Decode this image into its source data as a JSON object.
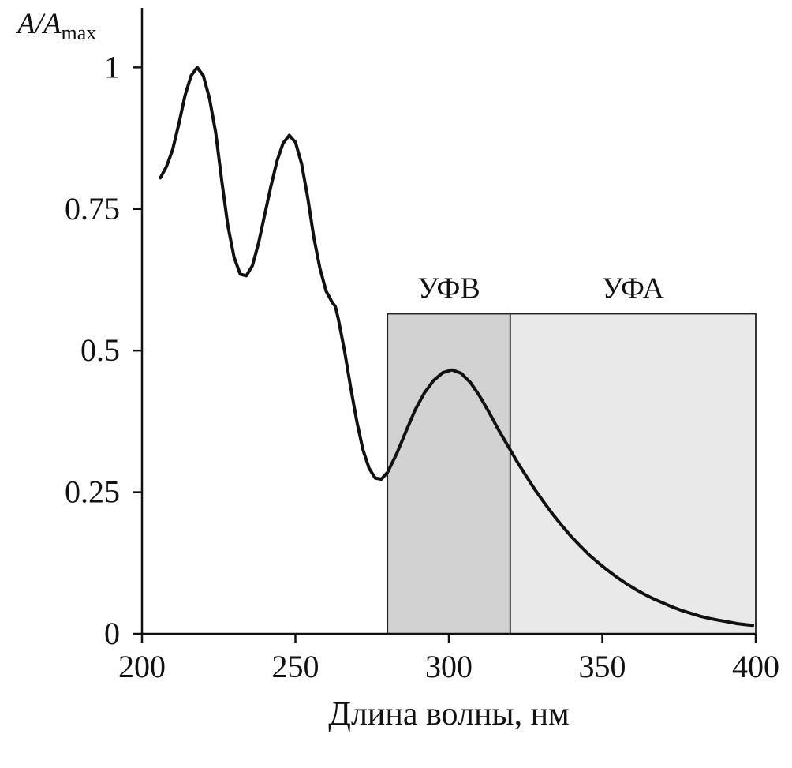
{
  "figure": {
    "background": "#ffffff"
  },
  "chart_data": {
    "type": "line",
    "title": "",
    "xlabel": "Длина волны, нм",
    "ylabel": "A/A_max",
    "xlim": [
      200,
      400
    ],
    "ylim": [
      0,
      1.105
    ],
    "x_ticks": [
      200,
      250,
      300,
      350,
      400
    ],
    "x_tick_labels": [
      "200",
      "250",
      "300",
      "350",
      "400"
    ],
    "y_ticks": [
      0,
      0.25,
      0.5,
      0.75,
      1
    ],
    "y_tick_labels": [
      "0",
      "0.25",
      "0.5",
      "0.75",
      "1"
    ],
    "grid": false,
    "legend": "none",
    "axis_color": "#111111",
    "line_color": "#111111",
    "line_width": 4,
    "regions": [
      {
        "label": "УФВ",
        "x0": 280,
        "x1": 320,
        "top": 0.565,
        "fill": "#d2d2d2",
        "stroke": "#222222"
      },
      {
        "label": "УФА",
        "x0": 320,
        "x1": 400,
        "top": 0.565,
        "fill": "#e9e9e9",
        "stroke": "#222222"
      }
    ],
    "series": [
      {
        "name": "absorption-spectrum",
        "points": [
          [
            206,
            0.805
          ],
          [
            208,
            0.825
          ],
          [
            210,
            0.855
          ],
          [
            212,
            0.9
          ],
          [
            214,
            0.95
          ],
          [
            216,
            0.985
          ],
          [
            218,
            1.0
          ],
          [
            220,
            0.985
          ],
          [
            222,
            0.945
          ],
          [
            224,
            0.885
          ],
          [
            226,
            0.8
          ],
          [
            228,
            0.72
          ],
          [
            230,
            0.665
          ],
          [
            232,
            0.635
          ],
          [
            234,
            0.632
          ],
          [
            236,
            0.65
          ],
          [
            238,
            0.69
          ],
          [
            240,
            0.74
          ],
          [
            242,
            0.79
          ],
          [
            244,
            0.835
          ],
          [
            246,
            0.866
          ],
          [
            248,
            0.88
          ],
          [
            250,
            0.868
          ],
          [
            252,
            0.83
          ],
          [
            254,
            0.77
          ],
          [
            256,
            0.7
          ],
          [
            258,
            0.645
          ],
          [
            260,
            0.605
          ],
          [
            262,
            0.585
          ],
          [
            263,
            0.578
          ],
          [
            264,
            0.555
          ],
          [
            266,
            0.5
          ],
          [
            268,
            0.435
          ],
          [
            270,
            0.375
          ],
          [
            272,
            0.325
          ],
          [
            274,
            0.292
          ],
          [
            276,
            0.275
          ],
          [
            278,
            0.273
          ],
          [
            280,
            0.285
          ],
          [
            283,
            0.318
          ],
          [
            286,
            0.357
          ],
          [
            289,
            0.395
          ],
          [
            292,
            0.425
          ],
          [
            295,
            0.447
          ],
          [
            298,
            0.461
          ],
          [
            301,
            0.466
          ],
          [
            304,
            0.46
          ],
          [
            307,
            0.444
          ],
          [
            310,
            0.42
          ],
          [
            313,
            0.392
          ],
          [
            316,
            0.362
          ],
          [
            319,
            0.334
          ],
          [
            322,
            0.306
          ],
          [
            325,
            0.28
          ],
          [
            328,
            0.255
          ],
          [
            331,
            0.232
          ],
          [
            334,
            0.21
          ],
          [
            337,
            0.19
          ],
          [
            340,
            0.171
          ],
          [
            343,
            0.154
          ],
          [
            346,
            0.138
          ],
          [
            349,
            0.124
          ],
          [
            352,
            0.111
          ],
          [
            355,
            0.099
          ],
          [
            358,
            0.088
          ],
          [
            361,
            0.078
          ],
          [
            364,
            0.069
          ],
          [
            367,
            0.061
          ],
          [
            370,
            0.054
          ],
          [
            373,
            0.047
          ],
          [
            376,
            0.041
          ],
          [
            379,
            0.036
          ],
          [
            382,
            0.031
          ],
          [
            385,
            0.027
          ],
          [
            388,
            0.024
          ],
          [
            391,
            0.021
          ],
          [
            394,
            0.018
          ],
          [
            397,
            0.016
          ],
          [
            399,
            0.015
          ]
        ]
      }
    ]
  }
}
